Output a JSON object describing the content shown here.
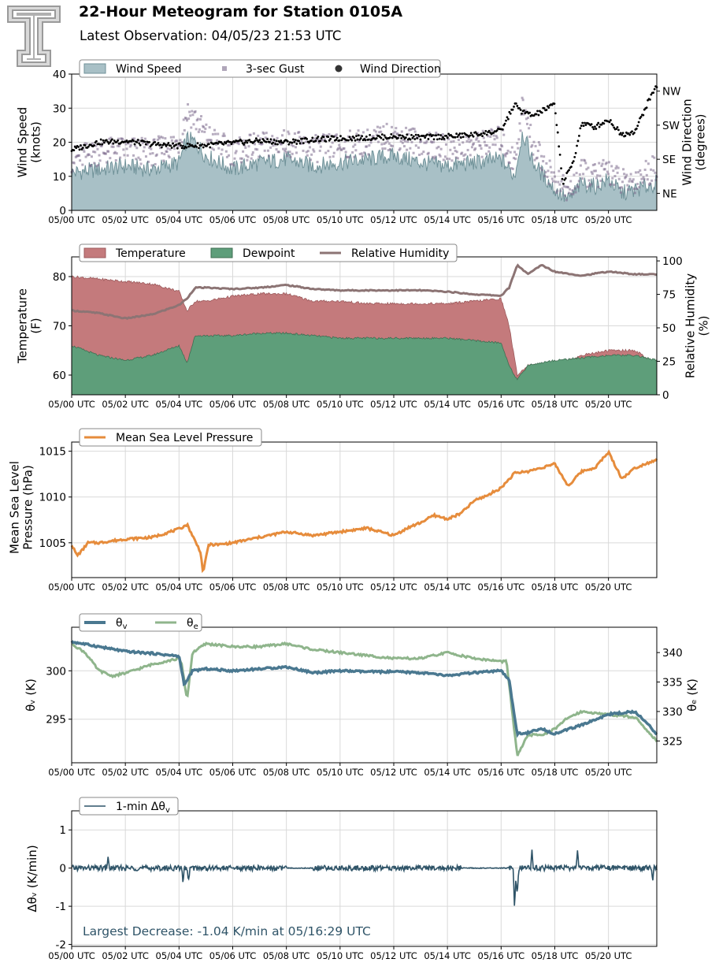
{
  "header": {
    "title": "22-Hour Meteogram for Station 0105A",
    "subtitle": "Latest Observation: 04/05/23 21:53 UTC",
    "logo": "tt-university-logo"
  },
  "colors": {
    "wind_fill": "#a8c0c6",
    "wind_line": "#6f9198",
    "gust": "#7b6a8c",
    "direction": "#000000",
    "temperature": "#c47a7c",
    "dewpoint": "#5e9e7a",
    "rh": "#8c7474",
    "pressure": "#e68c3c",
    "theta_v": "#4a7890",
    "theta_e": "#8fb58c",
    "dtheta": "#2f5468",
    "annotation": "#2f5468"
  },
  "chart_data": [
    {
      "type": "area",
      "id": "wind",
      "ylabel": "Wind Speed\n(knots)",
      "y2label": "Wind Direction\n(degrees)",
      "ylim": [
        0,
        40
      ],
      "yticks": [
        0,
        10,
        20,
        30,
        40
      ],
      "y2lim": [
        0,
        360
      ],
      "y2ticks": [
        {
          "v": 45,
          "label": "NE"
        },
        {
          "v": 135,
          "label": "SE"
        },
        {
          "v": 225,
          "label": "SW"
        },
        {
          "v": 315,
          "label": "NW"
        }
      ],
      "xlim": [
        0,
        21.8
      ],
      "xticks": [
        0,
        2,
        4,
        6,
        8,
        10,
        12,
        14,
        16,
        18,
        20
      ],
      "xticklabels": [
        "05/00 UTC",
        "05/02 UTC",
        "05/04 UTC",
        "05/06 UTC",
        "05/08 UTC",
        "05/10 UTC",
        "05/12 UTC",
        "05/14 UTC",
        "05/16 UTC",
        "05/18 UTC",
        "05/20 UTC"
      ],
      "grid": true,
      "legend": [
        "Wind Speed",
        "3-sec Gust",
        "Wind Direction"
      ],
      "legend_position": "top-left",
      "series": [
        {
          "name": "Wind Speed",
          "x": [
            0,
            1,
            2,
            3,
            4,
            4.3,
            4.6,
            5,
            6,
            7,
            8,
            9,
            10,
            11,
            12,
            13,
            14,
            15,
            16,
            16.5,
            16.8,
            17.2,
            18,
            18.5,
            19,
            19.5,
            20,
            20.5,
            21,
            21.8
          ],
          "values": [
            11,
            12,
            13,
            12,
            14,
            21,
            20,
            16,
            12,
            14,
            15,
            13,
            14,
            15,
            16,
            14,
            13,
            14,
            15,
            10,
            23,
            14,
            6,
            3,
            8,
            7,
            9,
            5,
            6,
            8
          ]
        },
        {
          "name": "3-sec Gust",
          "x": [
            0,
            1,
            2,
            3,
            4,
            4.3,
            4.6,
            5,
            6,
            7,
            8,
            9,
            10,
            11,
            12,
            13,
            14,
            15,
            16,
            16.5,
            16.8,
            17.2,
            18,
            18.5,
            19,
            19.5,
            20,
            20.5,
            21,
            21.8
          ],
          "values": [
            15,
            17,
            18,
            17,
            20,
            29,
            27,
            22,
            17,
            19,
            20,
            18,
            19,
            20,
            22,
            20,
            18,
            19,
            21,
            14,
            31,
            19,
            9,
            5,
            11,
            10,
            12,
            8,
            9,
            13
          ]
        },
        {
          "name": "Wind Direction",
          "x": [
            0,
            1,
            2,
            3,
            4,
            5,
            6,
            7,
            8,
            9,
            10,
            11,
            12,
            13,
            14,
            15,
            16,
            16.5,
            16.8,
            17.2,
            17.6,
            18,
            18.3,
            18.7,
            19,
            19.5,
            20,
            20.5,
            21,
            21.5,
            21.8
          ],
          "values": [
            160,
            180,
            183,
            175,
            170,
            172,
            178,
            184,
            180,
            187,
            190,
            192,
            195,
            193,
            195,
            200,
            210,
            280,
            260,
            250,
            265,
            280,
            70,
            130,
            230,
            220,
            240,
            200,
            210,
            290,
            330
          ]
        }
      ]
    },
    {
      "type": "area",
      "id": "temperature",
      "ylabel": "Temperature\n(F)",
      "y2label": "Relative Humidity\n(%)",
      "ylim": [
        56,
        84
      ],
      "yticks": [
        60,
        70,
        80
      ],
      "y2lim": [
        0,
        103
      ],
      "y2ticks": [
        0,
        25,
        50,
        75,
        100
      ],
      "xlim": [
        0,
        21.8
      ],
      "grid": true,
      "legend": [
        "Temperature",
        "Dewpoint",
        "Relative Humidity"
      ],
      "legend_position": "top-left",
      "series": [
        {
          "name": "Temperature",
          "x": [
            0,
            1,
            2,
            3,
            4,
            4.3,
            4.6,
            5,
            6,
            7,
            8,
            9,
            10,
            11,
            12,
            13,
            14,
            15,
            16,
            16.3,
            16.6,
            17,
            18,
            19,
            20,
            21,
            21.8
          ],
          "values": [
            80,
            79.5,
            79,
            78.5,
            77,
            73,
            75,
            75,
            76,
            76.5,
            76.5,
            75,
            75,
            74.5,
            74.5,
            74.5,
            74.5,
            75,
            75.5,
            70,
            60,
            62,
            62,
            64,
            65,
            65,
            62
          ]
        },
        {
          "name": "Dewpoint",
          "x": [
            0,
            1,
            2,
            3,
            4,
            4.3,
            4.6,
            5,
            6,
            7,
            8,
            9,
            10,
            11,
            12,
            13,
            14,
            15,
            16,
            16.3,
            16.6,
            17,
            18,
            19,
            20,
            21,
            21.8
          ],
          "values": [
            66,
            64,
            63,
            64,
            66,
            62.5,
            68,
            68,
            68,
            68.5,
            68.5,
            68,
            67.5,
            67.5,
            67.5,
            67.5,
            67.5,
            67,
            66.5,
            62,
            59,
            62,
            63,
            63.5,
            64,
            64,
            63
          ]
        },
        {
          "name": "Relative Humidity",
          "x": [
            0,
            1,
            2,
            3,
            4,
            4.3,
            4.6,
            5,
            6,
            7,
            8,
            9,
            10,
            11,
            12,
            13,
            14,
            15,
            16,
            16.3,
            16.6,
            17,
            17.5,
            18,
            19,
            20,
            21,
            21.8
          ],
          "values": [
            63,
            61,
            57,
            60,
            67,
            72,
            80,
            80,
            79,
            80,
            82,
            79,
            78,
            78,
            78,
            78,
            77,
            75,
            74,
            80,
            97,
            90,
            97,
            92,
            89,
            92,
            90,
            90
          ]
        }
      ]
    },
    {
      "type": "line",
      "id": "pressure",
      "ylabel": "Mean Sea Level\nPressure (hPa)",
      "ylim": [
        1001.2,
        1016
      ],
      "yticks": [
        1005,
        1010,
        1015
      ],
      "xlim": [
        0,
        21.8
      ],
      "grid": true,
      "legend": [
        "Mean Sea Level Pressure"
      ],
      "legend_position": "top-left",
      "series": [
        {
          "name": "Mean Sea Level Pressure",
          "x": [
            0,
            0.2,
            0.4,
            0.6,
            1,
            2,
            3,
            4,
            4.3,
            4.8,
            4.9,
            5.1,
            5.5,
            6,
            7,
            8,
            9,
            10,
            11,
            12,
            12.5,
            13,
            13.5,
            14,
            14.5,
            15,
            15.5,
            16,
            16.5,
            17,
            17.5,
            18,
            18.5,
            19,
            19.5,
            20,
            20.5,
            21,
            21.8
          ],
          "values": [
            1004.8,
            1003.6,
            1004.2,
            1005,
            1005,
            1005.4,
            1005.6,
            1006.5,
            1007,
            1004,
            1001.7,
            1004.8,
            1004.8,
            1005,
            1005.6,
            1006.2,
            1005.8,
            1006.2,
            1006.6,
            1005.8,
            1006.6,
            1007.2,
            1008,
            1007.6,
            1008.2,
            1009.6,
            1010.2,
            1011,
            1012.6,
            1012.8,
            1013.2,
            1013.6,
            1011.2,
            1012.8,
            1013.2,
            1014.9,
            1012,
            1013.2,
            1014.1
          ]
        }
      ]
    },
    {
      "type": "line",
      "id": "theta",
      "ylabel": "θv (K)",
      "y2label": "θe (K)",
      "ylim": [
        290.5,
        304.5
      ],
      "yticks": [
        295,
        300
      ],
      "y2lim": [
        321.3,
        344.3
      ],
      "y2ticks": [
        325,
        330,
        335,
        340
      ],
      "xlim": [
        0,
        21.8
      ],
      "grid": true,
      "legend": [
        "θv",
        "θe"
      ],
      "legend_position": "top-left",
      "series": [
        {
          "name": "θv",
          "x": [
            0,
            1,
            2,
            3,
            4,
            4.2,
            4.5,
            5,
            6,
            7,
            8,
            9,
            10,
            11,
            12,
            13,
            14,
            15,
            16,
            16.3,
            16.6,
            17,
            17.5,
            18,
            19,
            20,
            21,
            21.8
          ],
          "values": [
            303,
            302.5,
            302,
            301.8,
            301.5,
            298.5,
            300,
            300.2,
            300,
            300.2,
            300.4,
            299.8,
            300,
            299.9,
            299.9,
            299.8,
            299.5,
            299.8,
            300,
            299,
            293.5,
            293.6,
            294,
            293.5,
            294.4,
            295.5,
            295.8,
            293.5
          ]
        },
        {
          "name": "θe",
          "x": [
            0,
            0.5,
            1,
            1.5,
            2,
            3,
            4,
            4.1,
            4.3,
            4.5,
            5,
            6,
            7,
            8,
            9,
            10,
            11,
            12,
            13,
            14,
            15,
            16,
            16.2,
            16.6,
            17,
            17.5,
            18,
            18.5,
            19,
            20,
            21,
            21.8
          ],
          "values": [
            341.5,
            340,
            337,
            336,
            336.5,
            338,
            339,
            338,
            332,
            340,
            341.5,
            341,
            341,
            341.5,
            340.5,
            340,
            339.5,
            339,
            339,
            340,
            339,
            338.5,
            338.5,
            322.5,
            326,
            326,
            327,
            329,
            330,
            329.5,
            329,
            325
          ]
        }
      ]
    },
    {
      "type": "line",
      "id": "dtheta",
      "ylabel": "Δθv (K/min)",
      "ylim": [
        -2.05,
        1.5
      ],
      "yticks": [
        -2,
        -1,
        0,
        1
      ],
      "xlim": [
        0,
        21.8
      ],
      "grid": true,
      "legend": [
        "1-min Δθv"
      ],
      "legend_position": "top-left",
      "annotation": "Largest Decrease: -1.04 K/min at 05/16:29 UTC",
      "series": [
        {
          "name": "1-min Δθv",
          "x": [
            0,
            1.3,
            1.35,
            1.4,
            4.1,
            4.15,
            4.2,
            4.3,
            4.35,
            4.4,
            16.45,
            16.5,
            16.55,
            16.6,
            16.65,
            16.7,
            16.75,
            17.1,
            17.15,
            17.2,
            18.8,
            18.85,
            18.9,
            21.6,
            21.65,
            21.7,
            21.8
          ],
          "values": [
            0,
            0,
            0.28,
            0,
            0,
            -0.35,
            0,
            0,
            -0.42,
            0,
            0,
            -1.04,
            -0.3,
            -0.6,
            -0.2,
            0,
            0,
            0,
            0.42,
            0,
            0,
            0.55,
            0,
            0,
            -0.35,
            0,
            0
          ]
        }
      ]
    }
  ]
}
